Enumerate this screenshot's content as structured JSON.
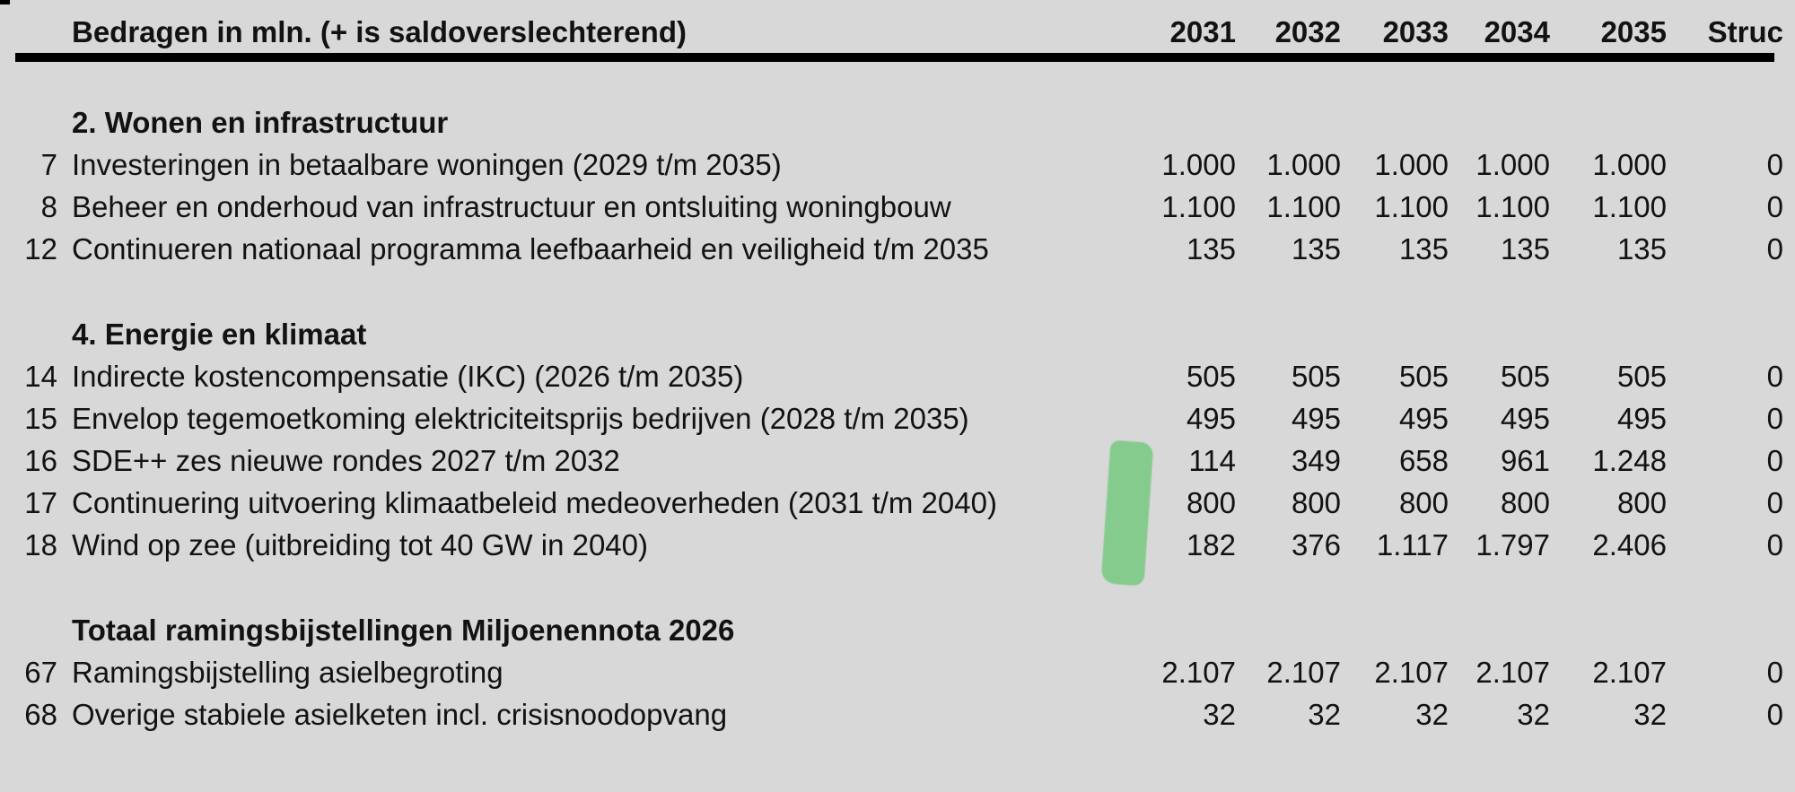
{
  "table": {
    "title": "Bedragen in mln. (+ is saldoverslechterend)",
    "columns": [
      "2031",
      "2032",
      "2033",
      "2034",
      "2035",
      "Struc"
    ],
    "sections": [
      {
        "heading": "2. Wonen en infrastructuur",
        "rows": [
          {
            "num": "7",
            "label": "Investeringen in betaalbare woningen (2029 t/m 2035)",
            "values": [
              "1.000",
              "1.000",
              "1.000",
              "1.000",
              "1.000",
              "0"
            ]
          },
          {
            "num": "8",
            "label": "Beheer en onderhoud van infrastructuur en ontsluiting woningbouw",
            "values": [
              "1.100",
              "1.100",
              "1.100",
              "1.100",
              "1.100",
              "0"
            ]
          },
          {
            "num": "12",
            "label": "Continueren nationaal programma leefbaarheid en veiligheid t/m 2035",
            "values": [
              "135",
              "135",
              "135",
              "135",
              "135",
              "0"
            ]
          }
        ]
      },
      {
        "heading": "4. Energie en klimaat",
        "rows": [
          {
            "num": "14",
            "label": "Indirecte kostencompensatie (IKC) (2026 t/m 2035)",
            "values": [
              "505",
              "505",
              "505",
              "505",
              "505",
              "0"
            ]
          },
          {
            "num": "15",
            "label": "Envelop tegemoetkoming elektriciteitsprijs bedrijven (2028 t/m 2035)",
            "values": [
              "495",
              "495",
              "495",
              "495",
              "495",
              "0"
            ]
          },
          {
            "num": "16",
            "label": "SDE++ zes nieuwe rondes 2027 t/m 2032",
            "values": [
              "114",
              "349",
              "658",
              "961",
              "1.248",
              "0"
            ]
          },
          {
            "num": "17",
            "label": "Continuering uitvoering klimaatbeleid medeoverheden (2031 t/m 2040)",
            "values": [
              "800",
              "800",
              "800",
              "800",
              "800",
              "0"
            ]
          },
          {
            "num": "18",
            "label": "Wind op zee (uitbreiding tot 40 GW in 2040)",
            "values": [
              "182",
              "376",
              "1.117",
              "1.797",
              "2.406",
              "0"
            ]
          }
        ]
      },
      {
        "heading": "Totaal ramingsbijstellingen Miljoenennota 2026",
        "rows": [
          {
            "num": "67",
            "label": "Ramingsbijstelling asielbegroting",
            "values": [
              "2.107",
              "2.107",
              "2.107",
              "2.107",
              "2.107",
              "0"
            ]
          },
          {
            "num": "68",
            "label": "Overige stabiele asielketen incl. crisisnoodopvang",
            "values": [
              "32",
              "32",
              "32",
              "32",
              "32",
              "0"
            ]
          }
        ]
      }
    ]
  },
  "annotation": {
    "type": "highlighter-stroke",
    "color": "#7fca88"
  },
  "colors": {
    "background": "#d8d8d8",
    "text": "#121212",
    "rule": "#000000"
  }
}
